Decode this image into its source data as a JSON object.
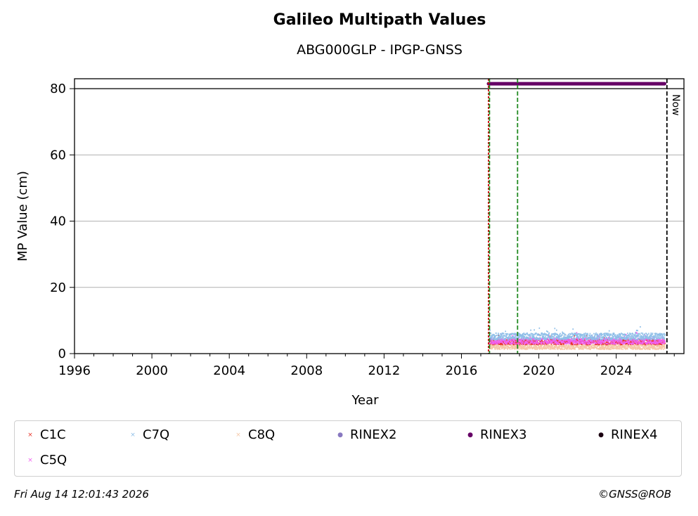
{
  "chart_data": {
    "type": "scatter",
    "title": "Galileo Multipath Values",
    "subtitle": "ABG000GLP - IPGP-GNSS",
    "xlabel": "Year",
    "ylabel": "MP Value (cm)",
    "xlim": [
      1996,
      2027.5
    ],
    "ylim": [
      0,
      83
    ],
    "xticks": [
      "1996",
      "2000",
      "2004",
      "2008",
      "2012",
      "2016",
      "2020",
      "2024"
    ],
    "yticks": [
      "0",
      "20",
      "40",
      "60",
      "80"
    ],
    "grid": "y",
    "legend_position": "bottom",
    "colors": {
      "C1C": "#e8362b",
      "C5Q": "#f060f0",
      "C7Q": "#8fbfe8",
      "C8Q": "#f5c8a8",
      "RINEX2": "#8878c0",
      "RINEX3": "#660066",
      "RINEX4": "#1a0010",
      "rinex_change": "#228b22",
      "first_obs": "#cc0000",
      "now": "#000000"
    },
    "series": [
      {
        "name": "C1C",
        "x_range": [
          2017.4,
          2026.5
        ],
        "mean": 3.5,
        "spread": 0.8
      },
      {
        "name": "C7Q",
        "x_range": [
          2017.4,
          2026.5
        ],
        "mean": 5.2,
        "spread": 1.0
      },
      {
        "name": "C8Q",
        "x_range": [
          2017.4,
          2026.5
        ],
        "mean": 2.0,
        "spread": 0.7
      },
      {
        "name": "C5Q",
        "x_range": [
          2017.4,
          2026.5
        ],
        "mean": 3.8,
        "spread": 0.9
      }
    ],
    "rinex_bands": [
      {
        "name": "RINEX3",
        "x_range": [
          2017.4,
          2026.5
        ],
        "y": 81.5
      }
    ],
    "vertical_lines": [
      {
        "kind": "first_obs",
        "x": 2017.4
      },
      {
        "kind": "rinex_change",
        "x": 2017.45
      },
      {
        "kind": "rinex_change",
        "x": 2018.9
      },
      {
        "kind": "now",
        "x": 2026.62,
        "label": "Now"
      }
    ],
    "hline": 80
  },
  "legend": [
    {
      "label": "C1C",
      "marker": "×",
      "color": "#e8362b"
    },
    {
      "label": "C7Q",
      "marker": "×",
      "color": "#8fbfe8"
    },
    {
      "label": "C8Q",
      "marker": "×",
      "color": "#f5c8a8"
    },
    {
      "label": "RINEX2",
      "marker": "●",
      "color": "#8878c0"
    },
    {
      "label": "RINEX3",
      "marker": "●",
      "color": "#660066"
    },
    {
      "label": "RINEX4",
      "marker": "●",
      "color": "#1a0010"
    },
    {
      "label": "C5Q",
      "marker": "×",
      "color": "#f060f0"
    }
  ],
  "footer": {
    "timestamp": "Fri Aug 14 12:01:43 2026",
    "credit": "©GNSS@ROB"
  }
}
